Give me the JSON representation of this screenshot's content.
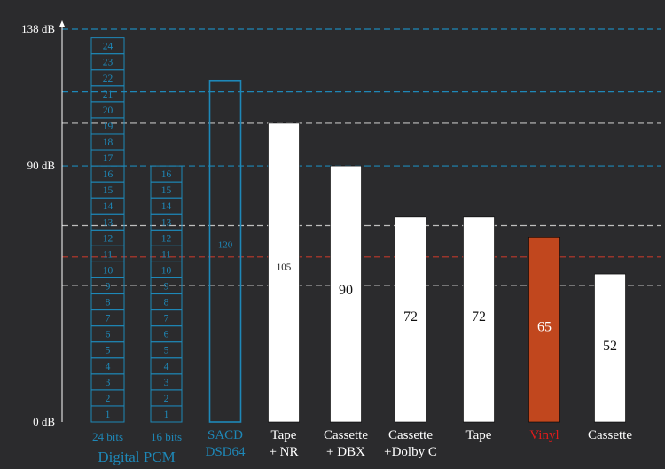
{
  "chart_data": {
    "type": "bar",
    "ylim": [
      0,
      138
    ],
    "y_ticks": [
      {
        "value": 0,
        "label": "0 dB"
      },
      {
        "value": 90,
        "label": "90 dB"
      },
      {
        "value": 138,
        "label": "138 dB"
      }
    ],
    "reference_lines": [
      {
        "value": 138,
        "style": "dashed",
        "color": "#1e88b8"
      },
      {
        "value": 116,
        "style": "dashed",
        "color": "#1e88b8"
      },
      {
        "value": 105,
        "style": "dashed",
        "color": "#bfbfbf"
      },
      {
        "value": 90,
        "style": "dashed",
        "color": "#1e88b8"
      },
      {
        "value": 69,
        "style": "dashed",
        "color": "#bfbfbf"
      },
      {
        "value": 58,
        "style": "dashed",
        "color": "#c0392b"
      },
      {
        "value": 48,
        "style": "dashed",
        "color": "#bfbfbf"
      }
    ],
    "pcm_24": {
      "label": "24 bits",
      "segments": [
        "1",
        "2",
        "3",
        "4",
        "5",
        "6",
        "7",
        "8",
        "9",
        "10",
        "11",
        "12",
        "13",
        "14",
        "15",
        "16",
        "17",
        "18",
        "19",
        "20",
        "21",
        "22",
        "23",
        "24"
      ]
    },
    "pcm_16": {
      "label": "16 bits",
      "segments": [
        "1",
        "2",
        "3",
        "4",
        "5",
        "6",
        "7",
        "8",
        "9",
        "10",
        "11",
        "12",
        "13",
        "14",
        "15",
        "16"
      ]
    },
    "group_label": "Digital PCM",
    "bars": [
      {
        "label_lines": [
          "SACD",
          "DSD64"
        ],
        "value": 120,
        "value_label": "120",
        "style": "outline",
        "color": "#1e88b8",
        "label_color": "#1e88b8",
        "value_size": "small"
      },
      {
        "label_lines": [
          "Tape",
          "+ NR"
        ],
        "value": 105,
        "value_label": "105",
        "style": "solid",
        "color": "#ffffff",
        "label_color": "#ffffff",
        "value_size": "small"
      },
      {
        "label_lines": [
          "Cassette",
          "+ DBX"
        ],
        "value": 90,
        "value_label": "90",
        "style": "solid",
        "color": "#ffffff",
        "label_color": "#ffffff",
        "value_size": "large"
      },
      {
        "label_lines": [
          "Cassette",
          "+Dolby C"
        ],
        "value": 72,
        "value_label": "72",
        "style": "solid",
        "color": "#ffffff",
        "label_color": "#ffffff",
        "value_size": "large"
      },
      {
        "label_lines": [
          "Tape"
        ],
        "value": 72,
        "value_label": "72",
        "style": "solid",
        "color": "#ffffff",
        "label_color": "#ffffff",
        "value_size": "large"
      },
      {
        "label_lines": [
          "Vinyl"
        ],
        "value": 65,
        "value_label": "65",
        "style": "solid",
        "color": "#c1471e",
        "label_color": "#e01b1b",
        "value_size": "large"
      },
      {
        "label_lines": [
          "Cassette"
        ],
        "value": 52,
        "value_label": "52",
        "style": "solid",
        "color": "#ffffff",
        "label_color": "#ffffff",
        "value_size": "large"
      }
    ],
    "colors": {
      "background": "#2b2b2d",
      "axis": "#ffffff",
      "pcm": "#1e88b8",
      "tick_label": "#ffffff"
    }
  }
}
